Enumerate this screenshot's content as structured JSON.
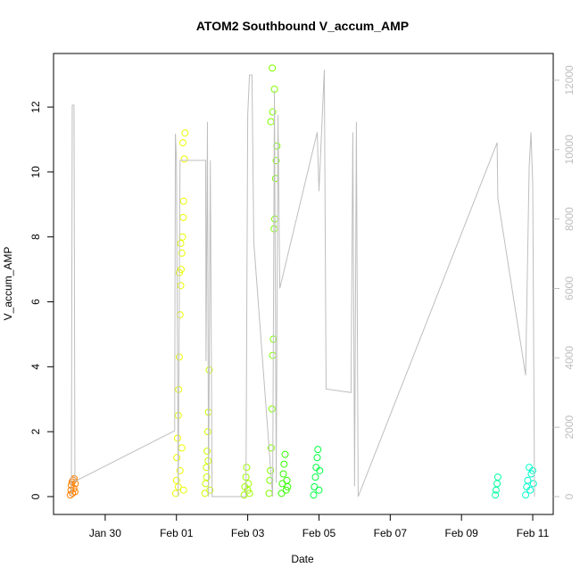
{
  "chart_data": {
    "type": "scatter",
    "title": "ATOM2 Southbound V_accum_AMP",
    "x_label": "Date",
    "y_label": "V_accum_AMP",
    "xlim": [
      -1.45,
      12.575
    ],
    "xticks": [
      {
        "value": 0,
        "label": "Jan 30"
      },
      {
        "value": 2,
        "label": "Feb 01"
      },
      {
        "value": 4,
        "label": "Feb 03"
      },
      {
        "value": 6,
        "label": "Feb 05"
      },
      {
        "value": 8,
        "label": "Feb 07"
      },
      {
        "value": 10,
        "label": "Feb 09"
      },
      {
        "value": 12,
        "label": "Feb 11"
      }
    ],
    "ylim": [
      -0.55,
      13.65
    ],
    "yticks": [
      0,
      2,
      4,
      6,
      8,
      10,
      12
    ],
    "y2lim": [
      -514,
      12770
    ],
    "y2ticks": [
      0,
      2000,
      4000,
      6000,
      8000,
      10000,
      12000
    ],
    "y2_color": "#bebebe",
    "series": [
      {
        "color": "#ff8000",
        "x": [
          -0.98,
          -0.96,
          -0.95,
          -0.93,
          -0.92,
          -0.9,
          -0.88,
          -0.87,
          -0.85,
          -0.84
        ],
        "values": [
          0.05,
          0.2,
          0.35,
          0.45,
          0.1,
          0.5,
          0.25,
          0.55,
          0.15,
          0.4
        ]
      },
      {
        "color": "#ebff00",
        "x": [
          1.98,
          2.0,
          2.01,
          2.03,
          2.05,
          2.06,
          2.08,
          2.1,
          2.12,
          2.13,
          2.15,
          2.17,
          2.19,
          2.2,
          2.22,
          2.24,
          2.05,
          2.1,
          2.15,
          2.2,
          2.08,
          2.12,
          2.18
        ],
        "values": [
          0.1,
          0.5,
          1.2,
          1.8,
          2.5,
          3.3,
          4.3,
          5.6,
          6.5,
          7.0,
          7.5,
          8.0,
          8.6,
          9.1,
          10.4,
          11.2,
          0.3,
          0.8,
          1.5,
          0.2,
          6.9,
          7.8,
          10.9
        ]
      },
      {
        "color": "#ccff00",
        "x": [
          2.8,
          2.82,
          2.84,
          2.86,
          2.88,
          2.9,
          2.92,
          2.94,
          2.85,
          2.89
        ],
        "values": [
          0.1,
          0.4,
          0.9,
          1.4,
          2.0,
          2.6,
          3.9,
          0.2,
          0.6,
          1.1
        ]
      },
      {
        "color": "#a0ff00",
        "x": [
          3.9,
          3.92,
          3.95,
          3.97,
          4.0,
          4.02,
          4.05
        ],
        "values": [
          0.05,
          0.3,
          0.6,
          0.9,
          0.2,
          0.4,
          0.1
        ]
      },
      {
        "color": "#80ff00",
        "x": [
          4.6,
          4.62,
          4.64,
          4.66,
          4.68,
          4.7,
          4.72,
          4.74,
          4.76,
          4.78,
          4.8,
          4.82,
          4.65,
          4.7,
          4.75,
          4.69
        ],
        "values": [
          0.1,
          0.5,
          0.8,
          1.5,
          2.7,
          4.35,
          4.85,
          8.25,
          8.55,
          9.8,
          10.35,
          10.8,
          11.55,
          11.85,
          12.55,
          13.2
        ]
      },
      {
        "color": "#33ff00",
        "x": [
          4.95,
          4.97,
          5.0,
          5.02,
          5.05,
          5.08,
          5.1,
          5.12
        ],
        "values": [
          0.1,
          0.4,
          0.7,
          1.0,
          1.3,
          0.2,
          0.5,
          0.3
        ]
      },
      {
        "color": "#00ff40",
        "x": [
          5.85,
          5.87,
          5.9,
          5.92,
          5.95,
          5.97,
          6.0,
          6.02
        ],
        "values": [
          0.05,
          0.3,
          0.6,
          0.9,
          1.2,
          1.45,
          0.2,
          0.8
        ]
      },
      {
        "color": "#00ffa0",
        "x": [
          10.95,
          10.97,
          11.0,
          11.02
        ],
        "values": [
          0.05,
          0.2,
          0.4,
          0.6
        ]
      },
      {
        "color": "#00ffcc",
        "x": [
          11.8,
          11.83,
          11.86,
          11.9,
          11.93,
          11.96,
          12.0,
          12.02
        ],
        "values": [
          0.05,
          0.3,
          0.5,
          0.9,
          0.2,
          0.7,
          0.8,
          0.4
        ]
      },
      {
        "color": "#bebebe",
        "axis": "y2",
        "mark": "line",
        "x": [
          -0.95,
          -0.925,
          -0.875,
          -0.85,
          1.95,
          1.97,
          2.0,
          2.05,
          2.1,
          2.82,
          2.83,
          2.87,
          2.9,
          2.95,
          3.0,
          3.95,
          4.0,
          4.05,
          4.12,
          4.17,
          4.7,
          4.75,
          4.8,
          4.85,
          4.9,
          5.95,
          6.0,
          6.15,
          6.2,
          6.9,
          6.95,
          7.0,
          7.05,
          7.1,
          11.0,
          11.02,
          11.8,
          11.9,
          11.95,
          12.0,
          12.05
        ],
        "values": [
          0,
          11280,
          11280,
          437,
          1900,
          10460,
          9690,
          0,
          9690,
          9690,
          3906,
          10800,
          0,
          9690,
          0,
          0,
          11000,
          12150,
          12150,
          7350,
          0,
          11700,
          400,
          11000,
          6000,
          10500,
          8800,
          12300,
          3100,
          3000,
          10500,
          300,
          10800,
          0,
          10200,
          8600,
          3500,
          9500,
          10500,
          9000,
          0
        ]
      }
    ]
  }
}
